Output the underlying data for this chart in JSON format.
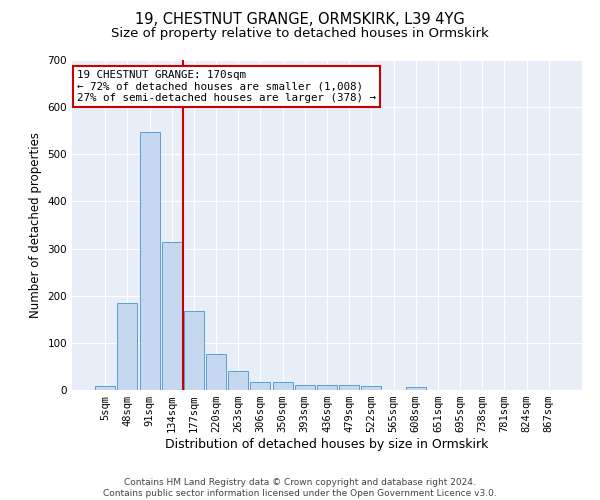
{
  "title": "19, CHESTNUT GRANGE, ORMSKIRK, L39 4YG",
  "subtitle": "Size of property relative to detached houses in Ormskirk",
  "xlabel": "Distribution of detached houses by size in Ormskirk",
  "ylabel": "Number of detached properties",
  "categories": [
    "5sqm",
    "48sqm",
    "91sqm",
    "134sqm",
    "177sqm",
    "220sqm",
    "263sqm",
    "306sqm",
    "350sqm",
    "393sqm",
    "436sqm",
    "479sqm",
    "522sqm",
    "565sqm",
    "608sqm",
    "651sqm",
    "695sqm",
    "738sqm",
    "781sqm",
    "824sqm",
    "867sqm"
  ],
  "values": [
    8,
    185,
    548,
    315,
    168,
    76,
    40,
    16,
    16,
    11,
    11,
    11,
    8,
    0,
    6,
    0,
    0,
    0,
    0,
    0,
    0
  ],
  "bar_color": "#c5d8f0",
  "bar_edge_color": "#5a9fd4",
  "vline_color": "#cc0000",
  "vline_x_index": 4,
  "ylim": [
    0,
    700
  ],
  "yticks": [
    0,
    100,
    200,
    300,
    400,
    500,
    600,
    700
  ],
  "annotation_line1": "19 CHESTNUT GRANGE: 170sqm",
  "annotation_line2": "← 72% of detached houses are smaller (1,008)",
  "annotation_line3": "27% of semi-detached houses are larger (378) →",
  "annotation_box_color": "#ffffff",
  "annotation_box_edge_color": "#cc0000",
  "bg_color": "#e8eef8",
  "footer_line1": "Contains HM Land Registry data © Crown copyright and database right 2024.",
  "footer_line2": "Contains public sector information licensed under the Open Government Licence v3.0.",
  "title_fontsize": 10.5,
  "subtitle_fontsize": 9.5,
  "ylabel_fontsize": 8.5,
  "xlabel_fontsize": 9,
  "tick_fontsize": 7.5,
  "annotation_fontsize": 7.8,
  "footer_fontsize": 6.5
}
